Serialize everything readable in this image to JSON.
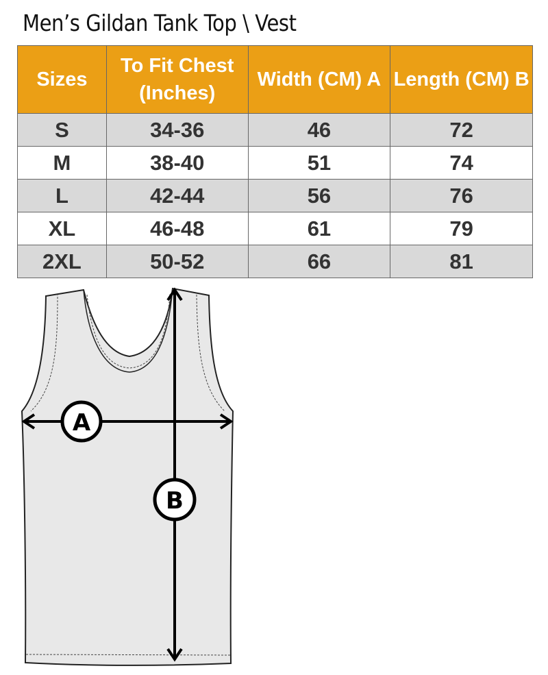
{
  "title": "Men’s Gildan Tank Top \\ Vest",
  "table": {
    "headers": [
      "Sizes",
      "To Fit Chest (Inches)",
      "Width (CM) A",
      "Length  (CM) B"
    ],
    "rows": [
      [
        "S",
        "34-36",
        "46",
        "72"
      ],
      [
        "M",
        "38-40",
        "51",
        "74"
      ],
      [
        "L",
        "42-44",
        "56",
        "76"
      ],
      [
        "XL",
        "46-48",
        "61",
        "79"
      ],
      [
        "2XL",
        "50-52",
        "66",
        "81"
      ]
    ]
  },
  "diagram": {
    "label_a": "A",
    "label_b": "B"
  },
  "colors": {
    "header": "#eb9f15",
    "row_shade": "#d9d9d9",
    "garment": "#e8e8e8"
  }
}
